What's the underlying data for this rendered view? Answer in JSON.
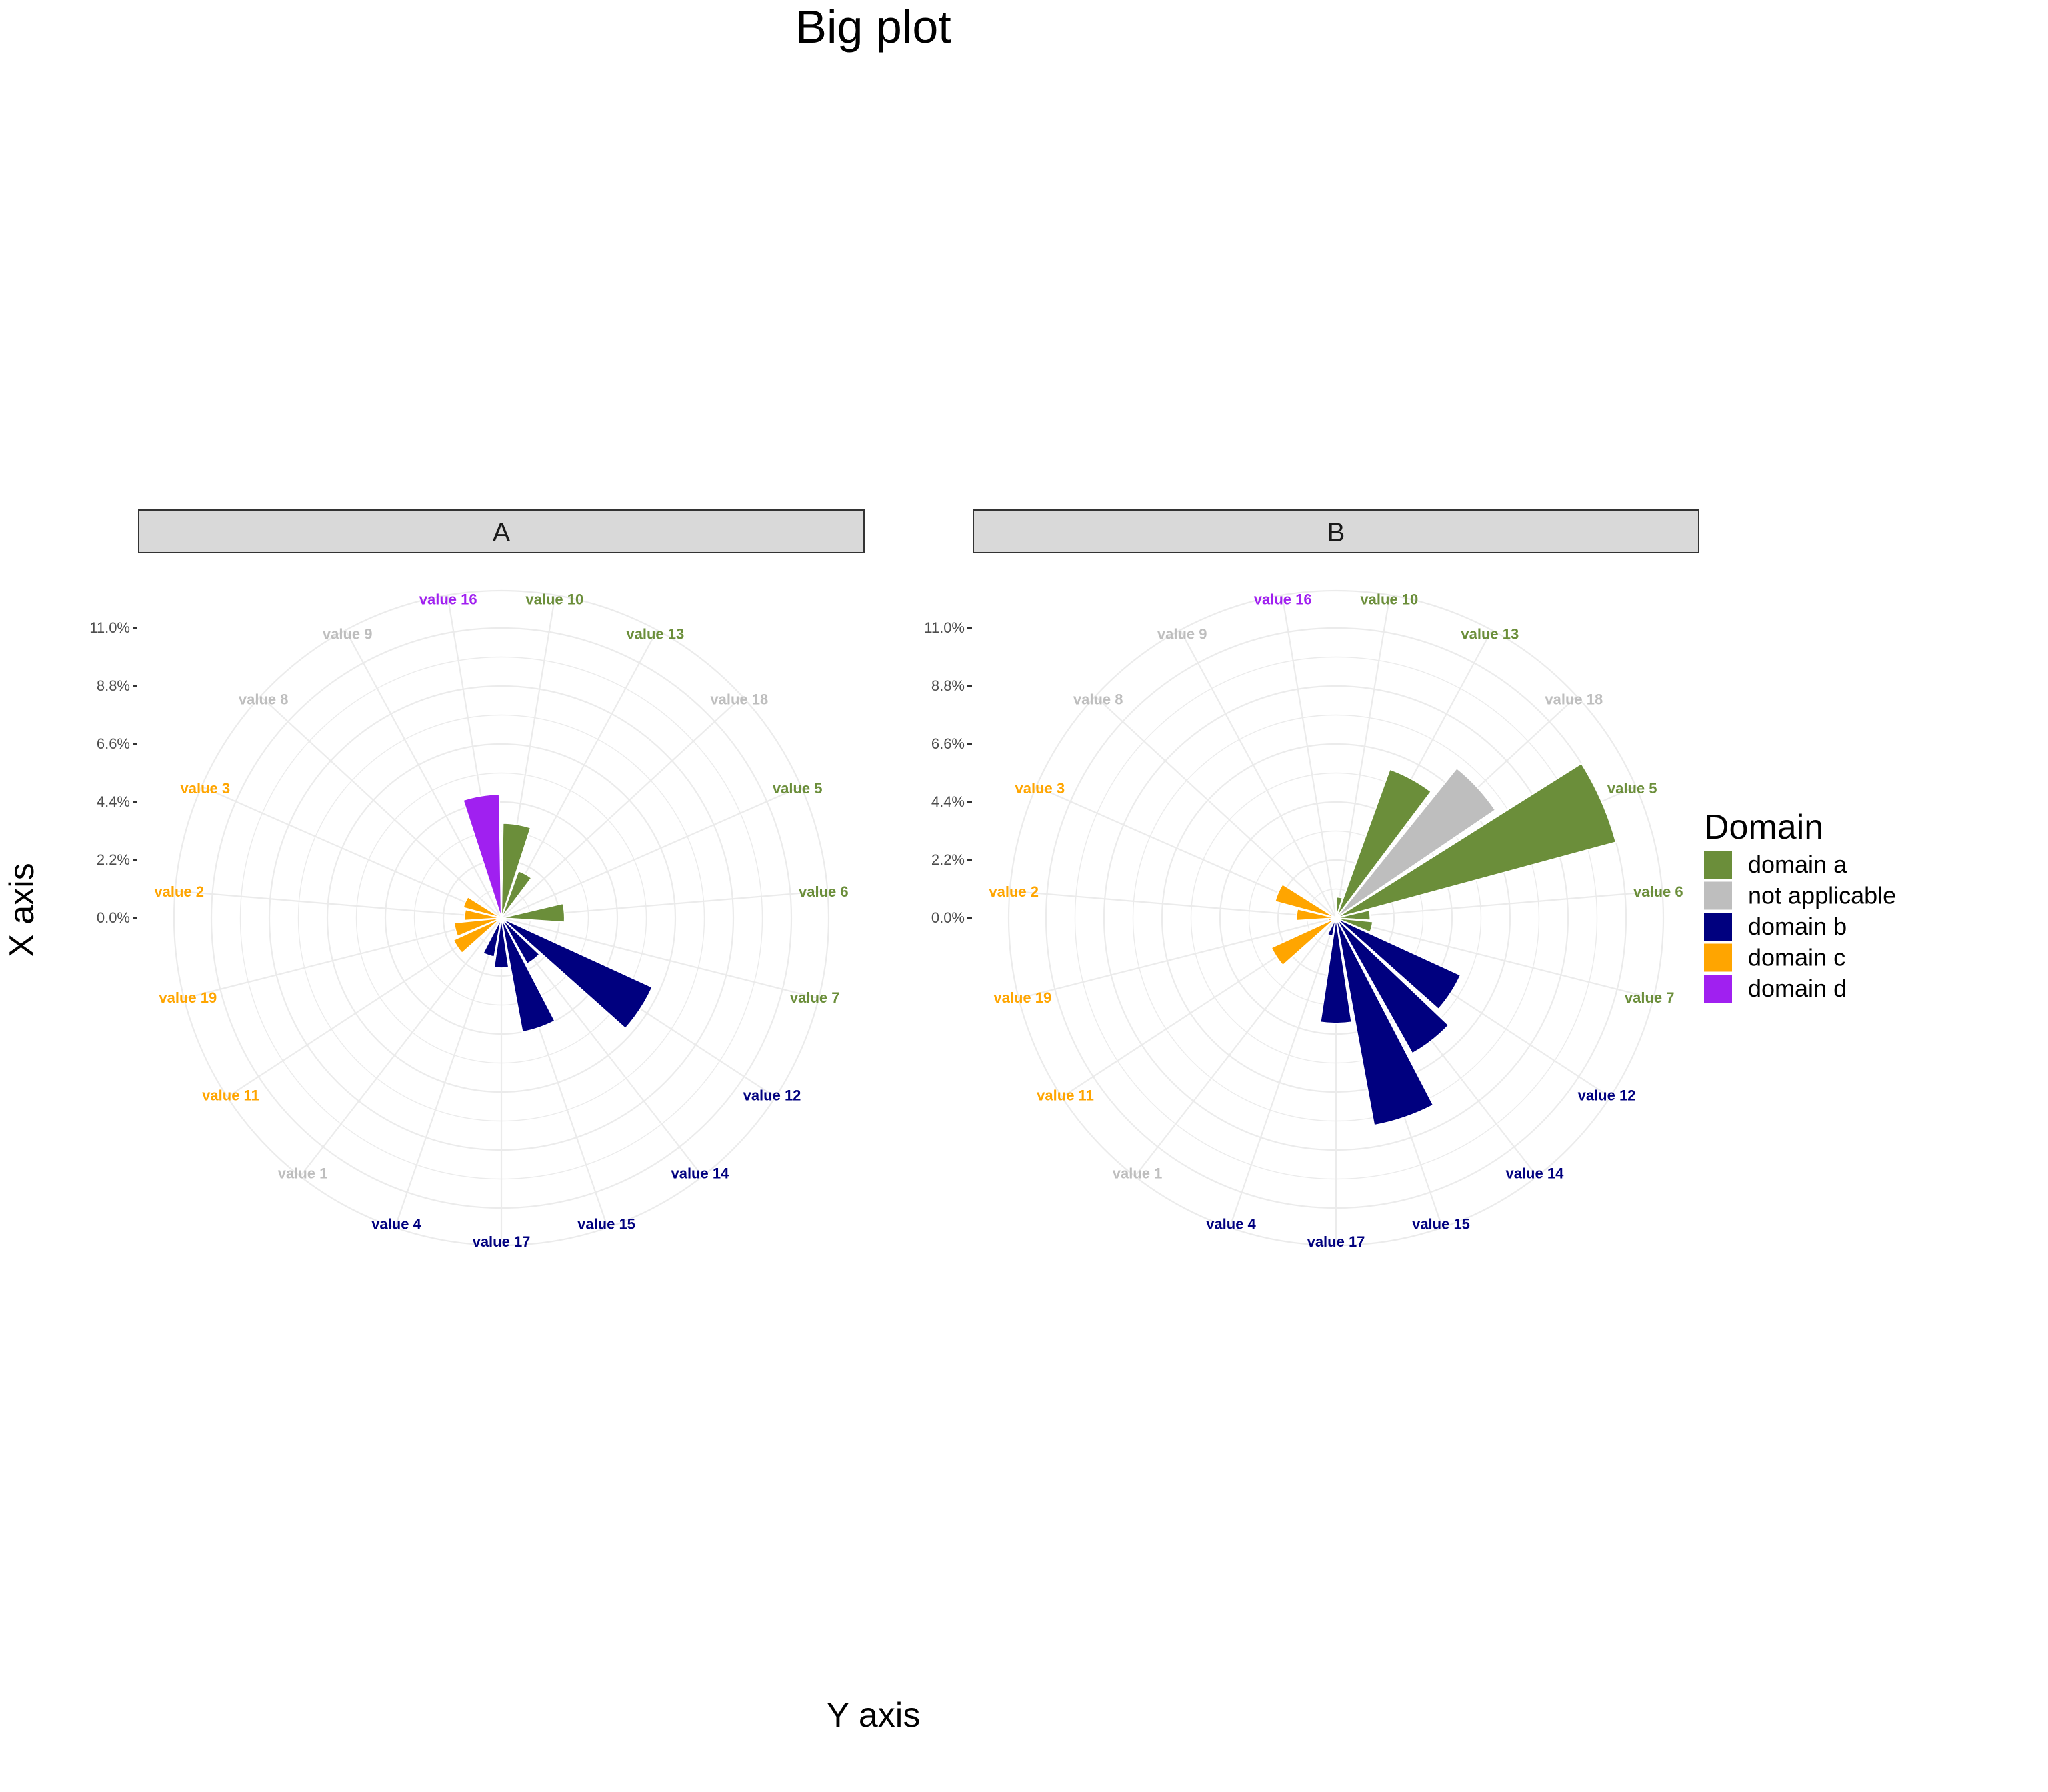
{
  "chart_data": {
    "type": "bar",
    "coord": "polar",
    "title": "Big plot",
    "xlabel": "Y axis",
    "ylabel": "X axis",
    "ylim": [
      0,
      11
    ],
    "y_ticks": [
      "0.0%",
      "2.2%",
      "4.4%",
      "6.6%",
      "8.8%",
      "11.0%"
    ],
    "grid": true,
    "legend_position": "right",
    "legend_title": "Domain",
    "domains": [
      {
        "name": "domain a",
        "color": "#6b8e3a"
      },
      {
        "name": "not applicable",
        "color": "#bebebe"
      },
      {
        "name": "domain b",
        "color": "#00007f"
      },
      {
        "name": "domain c",
        "color": "#ffa500"
      },
      {
        "name": "domain d",
        "color": "#a020f0"
      }
    ],
    "categories": [
      "value 10",
      "value 13",
      "value 18",
      "value 5",
      "value 6",
      "value 7",
      "value 12",
      "value 14",
      "value 15",
      "value 17",
      "value 4",
      "value 1",
      "value 11",
      "value 19",
      "value 2",
      "value 3",
      "value 8",
      "value 9",
      "value 16"
    ],
    "category_domains": [
      "domain a",
      "domain a",
      "not applicable",
      "domain a",
      "domain a",
      "domain a",
      "domain b",
      "domain b",
      "domain b",
      "domain b",
      "domain b",
      "not applicable",
      "domain c",
      "domain c",
      "domain c",
      "domain c",
      "not applicable",
      "not applicable",
      "domain d"
    ],
    "panels": [
      {
        "label": "A",
        "values": [
          3.6,
          1.9,
          0,
          0,
          2.4,
          0,
          6.3,
          2.0,
          4.4,
          1.9,
          1.5,
          0,
          2.0,
          1.8,
          1.4,
          1.5,
          0,
          0,
          4.7
        ]
      },
      {
        "label": "B",
        "values": [
          0.8,
          6.0,
          7.3,
          11.0,
          1.3,
          1.4,
          5.2,
          5.9,
          8.0,
          4.0,
          0.7,
          0,
          2.7,
          0.3,
          1.5,
          2.4,
          0,
          0,
          0
        ]
      }
    ]
  }
}
